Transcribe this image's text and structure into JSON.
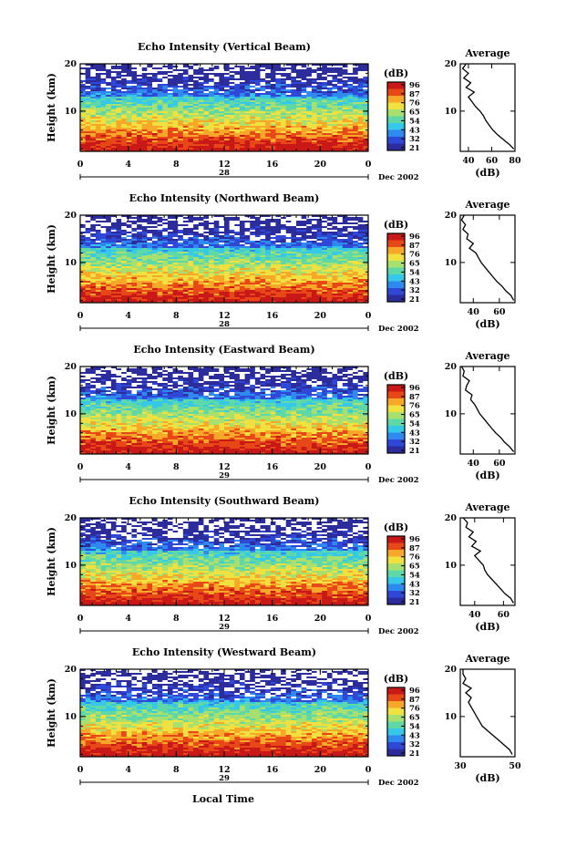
{
  "figure": {
    "xlabel": "Local Time",
    "colorbar_title": "(dB)",
    "colorbar_ticks": [
      "96",
      "87",
      "76",
      "65",
      "54",
      "43",
      "32",
      "21"
    ],
    "colors": {
      "scale": [
        "#2c2c9c",
        "#2f48d8",
        "#2f8af0",
        "#36c8e8",
        "#5fd8a8",
        "#a8e070",
        "#f0e040",
        "#f8a828",
        "#e84818",
        "#c81818"
      ]
    }
  },
  "chart_data": [
    {
      "type": "heatmap",
      "title": "Echo Intensity (Vertical Beam)",
      "ylabel": "Height (km)",
      "x_ticks": [
        "0",
        "4",
        "8",
        "12",
        "16",
        "20",
        "0"
      ],
      "date_day": "28",
      "date_label": "Dec 2002",
      "xlim": [
        0,
        24
      ],
      "ylim": [
        1.5,
        20
      ],
      "colorbar": {
        "title": "(dB)",
        "ticks": [
          "96",
          "87",
          "76",
          "65",
          "54",
          "43",
          "32",
          "21"
        ]
      },
      "profile": {
        "title": "Average",
        "xlabel": "(dB)",
        "x_ticks": [
          "40",
          "60",
          "80"
        ],
        "xlim": [
          33,
          80
        ],
        "y_ticks": [
          "20",
          "10"
        ],
        "ylim": [
          1.5,
          20
        ],
        "points": [
          [
            79,
            2
          ],
          [
            75,
            3
          ],
          [
            70,
            4
          ],
          [
            65,
            5
          ],
          [
            61,
            6
          ],
          [
            58,
            7
          ],
          [
            55,
            8
          ],
          [
            53,
            9
          ],
          [
            50,
            10
          ],
          [
            46,
            11
          ],
          [
            43,
            12
          ],
          [
            40,
            13
          ],
          [
            45,
            14
          ],
          [
            38,
            15
          ],
          [
            42,
            16
          ],
          [
            36,
            17
          ],
          [
            40,
            18
          ],
          [
            35,
            19
          ],
          [
            38,
            20
          ]
        ]
      }
    },
    {
      "type": "heatmap",
      "title": "Echo Intensity (Northward Beam)",
      "ylabel": "Height (km)",
      "x_ticks": [
        "0",
        "4",
        "8",
        "12",
        "16",
        "20",
        "0"
      ],
      "date_day": "28",
      "date_label": "Dec 2002",
      "xlim": [
        0,
        24
      ],
      "ylim": [
        1.5,
        20
      ],
      "colorbar": {
        "title": "(dB)",
        "ticks": [
          "96",
          "87",
          "76",
          "65",
          "54",
          "43",
          "32",
          "21"
        ]
      },
      "profile": {
        "title": "Average",
        "xlabel": "(dB)",
        "x_ticks": [
          "40",
          "60"
        ],
        "xlim": [
          30,
          72
        ],
        "y_ticks": [
          "20",
          "10"
        ],
        "ylim": [
          1.5,
          20
        ],
        "points": [
          [
            71,
            2
          ],
          [
            69,
            3
          ],
          [
            65,
            4
          ],
          [
            62,
            5
          ],
          [
            58,
            6
          ],
          [
            55,
            7
          ],
          [
            52,
            8
          ],
          [
            49,
            9
          ],
          [
            46,
            10
          ],
          [
            44,
            11
          ],
          [
            42,
            12
          ],
          [
            37,
            13
          ],
          [
            40,
            14
          ],
          [
            35,
            15
          ],
          [
            36,
            16
          ],
          [
            32,
            17
          ],
          [
            34,
            18
          ],
          [
            31,
            19
          ],
          [
            33,
            20
          ]
        ]
      }
    },
    {
      "type": "heatmap",
      "title": "Echo Intensity (Eastward Beam)",
      "ylabel": "Height (km)",
      "x_ticks": [
        "0",
        "4",
        "8",
        "12",
        "16",
        "20",
        "0"
      ],
      "date_day": "29",
      "date_label": "Dec 2002",
      "xlim": [
        0,
        24
      ],
      "ylim": [
        1.5,
        20
      ],
      "colorbar": {
        "title": "(dB)",
        "ticks": [
          "96",
          "87",
          "76",
          "65",
          "54",
          "43",
          "32",
          "21"
        ]
      },
      "profile": {
        "title": "Average",
        "xlabel": "(dB)",
        "x_ticks": [
          "40",
          "60"
        ],
        "xlim": [
          30,
          72
        ],
        "y_ticks": [
          "20",
          "10"
        ],
        "ylim": [
          1.5,
          20
        ],
        "points": [
          [
            71,
            2
          ],
          [
            68,
            3
          ],
          [
            64,
            4
          ],
          [
            61,
            5
          ],
          [
            57,
            6
          ],
          [
            54,
            7
          ],
          [
            51,
            8
          ],
          [
            48,
            9
          ],
          [
            45,
            10
          ],
          [
            43,
            11
          ],
          [
            41,
            12
          ],
          [
            38,
            13
          ],
          [
            39,
            14
          ],
          [
            34,
            15
          ],
          [
            35,
            16
          ],
          [
            37,
            17
          ],
          [
            32,
            18
          ],
          [
            33,
            19
          ],
          [
            31,
            20
          ]
        ]
      }
    },
    {
      "type": "heatmap",
      "title": "Echo Intensity (Southward Beam)",
      "ylabel": "Height (km)",
      "x_ticks": [
        "0",
        "4",
        "8",
        "12",
        "16",
        "20",
        "0"
      ],
      "date_day": "29",
      "date_label": "Dec 2002",
      "xlim": [
        0,
        24
      ],
      "ylim": [
        1.5,
        20
      ],
      "colorbar": {
        "title": "(dB)",
        "ticks": [
          "96",
          "87",
          "76",
          "65",
          "54",
          "43",
          "32",
          "21"
        ]
      },
      "profile": {
        "title": "Average",
        "xlabel": "(dB)",
        "x_ticks": [
          "40",
          "60"
        ],
        "xlim": [
          30,
          68
        ],
        "y_ticks": [
          "20",
          "10"
        ],
        "ylim": [
          1.5,
          20
        ],
        "points": [
          [
            67,
            2
          ],
          [
            65,
            3
          ],
          [
            61,
            4
          ],
          [
            58,
            5
          ],
          [
            55,
            6
          ],
          [
            52,
            7
          ],
          [
            49,
            8
          ],
          [
            47,
            9
          ],
          [
            46,
            10
          ],
          [
            43,
            11
          ],
          [
            40,
            12
          ],
          [
            44,
            13
          ],
          [
            38,
            14
          ],
          [
            41,
            15
          ],
          [
            36,
            16
          ],
          [
            39,
            17
          ],
          [
            34,
            18
          ],
          [
            35,
            19
          ],
          [
            32,
            20
          ]
        ]
      }
    },
    {
      "type": "heatmap",
      "title": "Echo Intensity (Westward Beam)",
      "ylabel": "Height (km)",
      "x_ticks": [
        "0",
        "4",
        "8",
        "12",
        "16",
        "20",
        "0"
      ],
      "date_day": "29",
      "date_label": "Dec 2002",
      "xlim": [
        0,
        24
      ],
      "ylim": [
        1.5,
        20
      ],
      "colorbar": {
        "title": "(dB)",
        "ticks": [
          "96",
          "87",
          "76",
          "65",
          "54",
          "43",
          "32",
          "21"
        ]
      },
      "profile": {
        "title": "Average",
        "xlabel": "(dB)",
        "x_ticks": [
          "30",
          "50"
        ],
        "xlim": [
          30,
          50
        ],
        "y_ticks": [
          "20",
          "10"
        ],
        "ylim": [
          1.5,
          20
        ],
        "points": [
          [
            49,
            2
          ],
          [
            48,
            3
          ],
          [
            46,
            4
          ],
          [
            44,
            5
          ],
          [
            42,
            6
          ],
          [
            40,
            7
          ],
          [
            38,
            8
          ],
          [
            37,
            9
          ],
          [
            36,
            10
          ],
          [
            35,
            11
          ],
          [
            34,
            12
          ],
          [
            33,
            13
          ],
          [
            34,
            14
          ],
          [
            32,
            15
          ],
          [
            34,
            16
          ],
          [
            31,
            17
          ],
          [
            32,
            18
          ],
          [
            31,
            19
          ],
          [
            31,
            20
          ]
        ]
      }
    }
  ]
}
